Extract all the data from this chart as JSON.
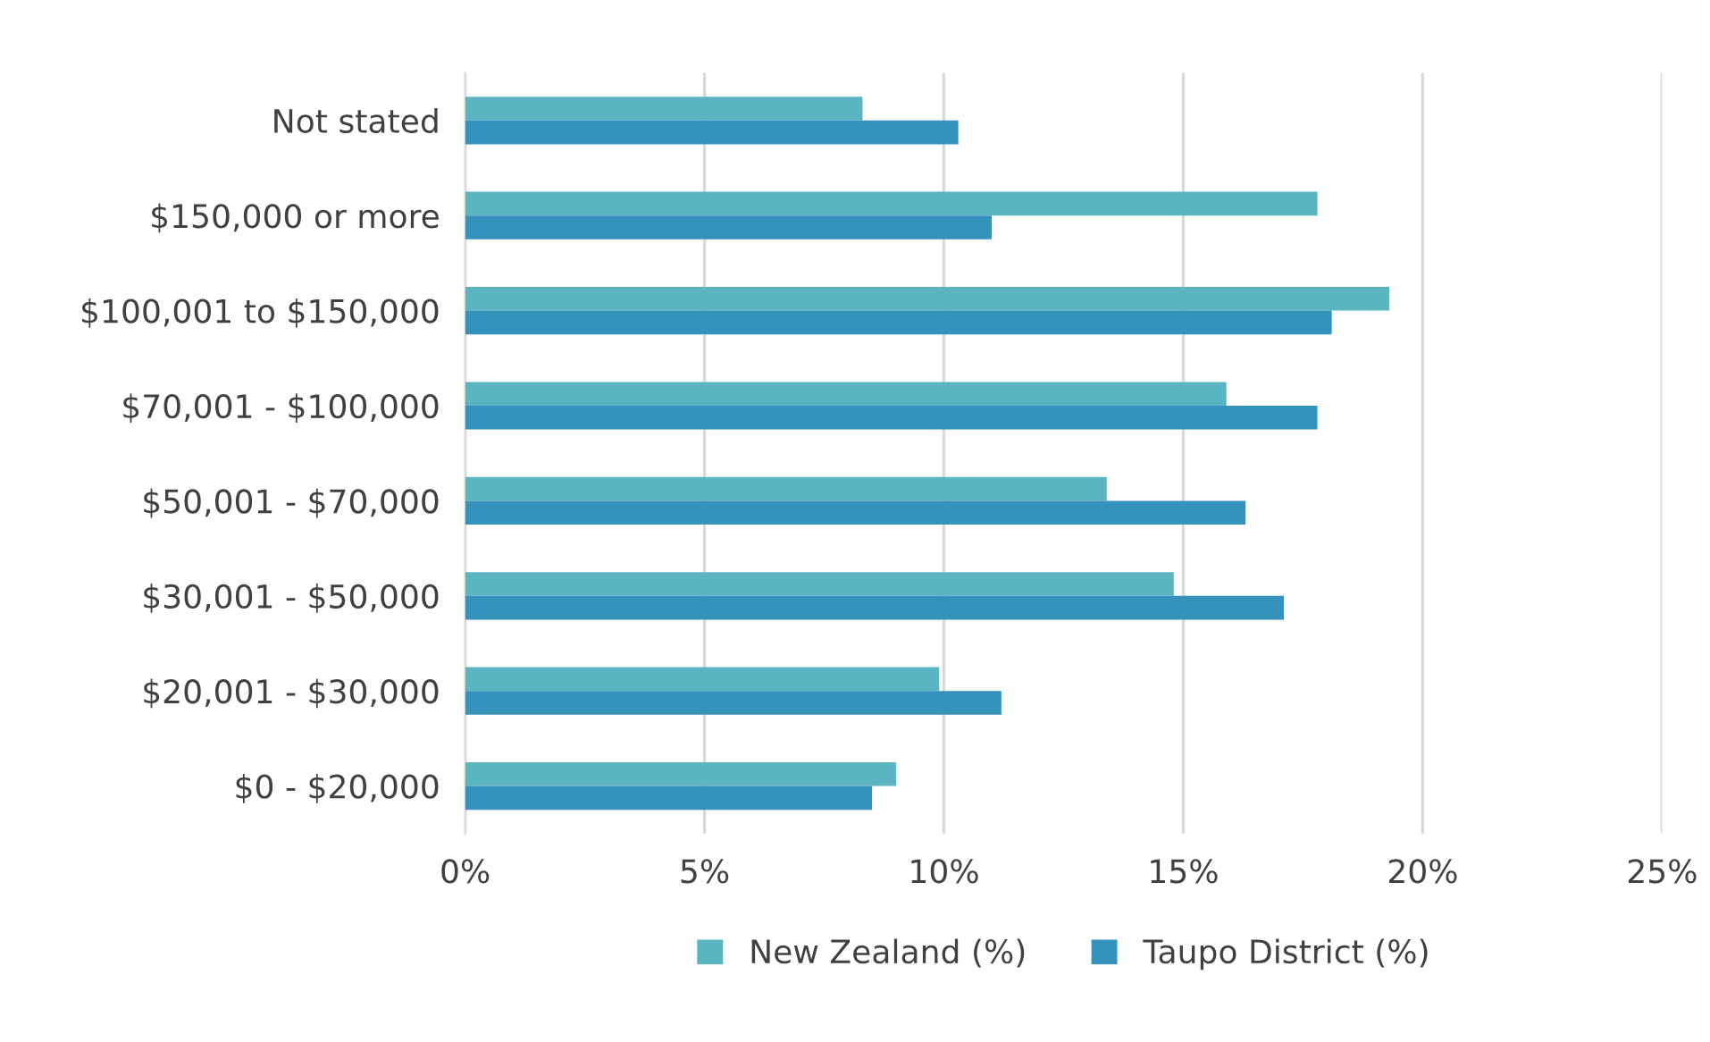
{
  "chart_data": {
    "type": "bar",
    "orientation": "horizontal",
    "categories": [
      "Not stated",
      "$150,000 or more",
      "$100,001 to $150,000",
      "$70,001 - $100,000",
      "$50,001 - $70,000",
      "$30,001 - $50,000",
      "$20,001 - $30,000",
      "$0 - $20,000"
    ],
    "series": [
      {
        "name": "New Zealand (%)",
        "color": "#5ab4c1",
        "values": [
          8.3,
          17.8,
          19.3,
          15.9,
          13.4,
          14.8,
          9.9,
          9.0
        ]
      },
      {
        "name": "Taupo District (%)",
        "color": "#3592bb",
        "values": [
          10.3,
          11.0,
          18.1,
          17.8,
          16.3,
          17.1,
          11.2,
          8.5
        ]
      }
    ],
    "xlim": [
      0,
      25
    ],
    "xticks": [
      {
        "value": 0,
        "label": "0%"
      },
      {
        "value": 5,
        "label": "5%"
      },
      {
        "value": 10,
        "label": "10%"
      },
      {
        "value": 15,
        "label": "15%"
      },
      {
        "value": 20,
        "label": "20%"
      },
      {
        "value": 25,
        "label": "25%"
      }
    ],
    "grid": "x",
    "legend": "bottom"
  }
}
